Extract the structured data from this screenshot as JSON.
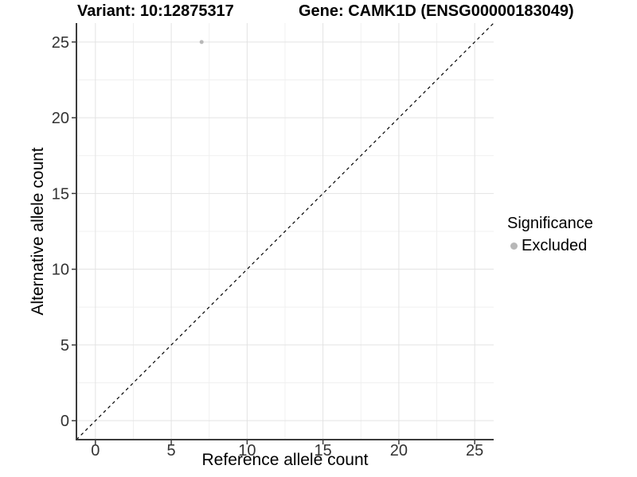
{
  "chart_data": {
    "type": "scatter",
    "title_left": "Variant: 10:12875317",
    "title_right": "Gene: CAMK1D (ENSG00000183049)",
    "xlabel": "Reference allele count",
    "ylabel": "Alternative allele count",
    "xlim": [
      -1.25,
      26.25
    ],
    "ylim": [
      -1.25,
      26.25
    ],
    "x_ticks": [
      0,
      5,
      10,
      15,
      20,
      25
    ],
    "y_ticks": [
      0,
      5,
      10,
      15,
      20,
      25
    ],
    "x_minor_ticks": [
      2.5,
      7.5,
      12.5,
      17.5,
      22.5
    ],
    "y_minor_ticks": [
      2.5,
      7.5,
      12.5,
      17.5,
      22.5
    ],
    "grid": true,
    "points": [
      {
        "x": 7,
        "y": 25,
        "significance": "Excluded",
        "radius": 2.5
      }
    ],
    "identity_line": {
      "style": "dashed",
      "slope": 1,
      "intercept": 0
    },
    "legend": {
      "title": "Significance",
      "position": "right",
      "entries": [
        {
          "label": "Excluded",
          "color": "#b8b8b8"
        }
      ]
    },
    "colors": {
      "point": "#b8b8b8",
      "grid_major": "#e3e3e3",
      "grid_minor": "#f0f0f0",
      "axis_line": "#3c3c3c",
      "tick_mark": "#3c3c3c",
      "tick_label": "#333333",
      "dashed_line": "#000000",
      "background": "#ffffff"
    }
  }
}
